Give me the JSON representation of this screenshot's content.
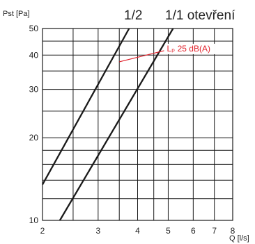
{
  "chart_data": {
    "type": "line",
    "title": "",
    "xlabel": "Q [l/s]",
    "ylabel": "Pst [Pa]",
    "x_scale": "log",
    "y_scale": "log",
    "xlim": [
      2,
      8
    ],
    "ylim": [
      10,
      50
    ],
    "x_ticks": [
      2,
      3,
      4,
      5,
      6,
      7,
      8
    ],
    "x_tick_labels": [
      "2",
      "3",
      "4",
      "5",
      "6",
      "7",
      "8"
    ],
    "y_ticks": [
      10,
      20,
      30,
      40,
      50
    ],
    "y_tick_labels": [
      "10",
      "20",
      "30",
      "40",
      "50"
    ],
    "x_minor_grid": [
      2.5,
      3.5,
      4.5
    ],
    "y_minor_grid": [
      12,
      14,
      16,
      18,
      25,
      35,
      45
    ],
    "grid": true,
    "series_headers": [
      "1/2",
      "1/1 otevření"
    ],
    "series": [
      {
        "name": "1/2",
        "x": [
          2.0,
          3.76
        ],
        "y": [
          13.5,
          50
        ]
      },
      {
        "name": "1/1 otevření",
        "x": [
          2.27,
          5.18
        ],
        "y": [
          10,
          50
        ]
      }
    ],
    "annotations": [
      {
        "text": "Lₚ 25 dB(A)",
        "x": 3.5,
        "y": 37.8,
        "target_curve": "1/2 - 1/1 otevření",
        "point_to": [
          4.85,
          41.5
        ]
      }
    ]
  },
  "colors": {
    "curve": "#1a1a1a",
    "annotation": "#e0212b",
    "grid": "#1a1a1a"
  }
}
